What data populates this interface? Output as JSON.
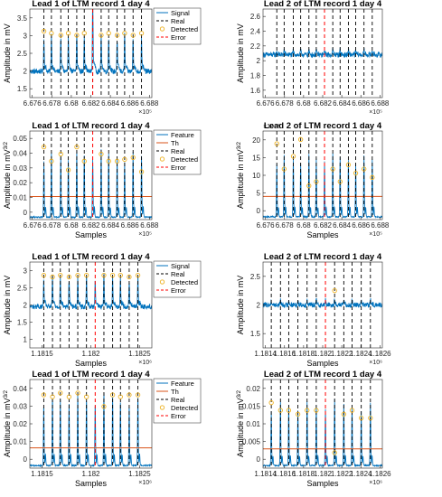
{
  "chart_data": [
    {
      "type": "line",
      "title": "Lead 1 of LTM record 1 day 4",
      "xlabel": "",
      "ylabel": "Amplitude in mV",
      "ylabel_sup": "",
      "x_ticks": [
        "6.676",
        "6.678",
        "6.68",
        "6.682",
        "6.684",
        "6.686",
        "6.688"
      ],
      "x_exponent": "×10⁵",
      "y_ticks": [
        "1.5",
        "2",
        "2.5",
        "3",
        "3.5"
      ],
      "y_exponent": "",
      "xlim": [
        6.675,
        6.688
      ],
      "ylim": [
        1.4,
        3.6
      ],
      "series": [
        {
          "name": "Signal",
          "base": 2.05,
          "peak": 3.0
        }
      ],
      "real_beats": [
        6.6765,
        6.6773,
        6.6783,
        6.6791,
        6.68,
        6.6808,
        6.6817,
        6.6826,
        6.6834,
        6.6843,
        6.6851,
        6.686,
        6.6869
      ],
      "detected": [
        {
          "x": 6.6765,
          "y": 3.05
        },
        {
          "x": 6.6773,
          "y": 3.0
        },
        {
          "x": 6.6783,
          "y": 2.95
        },
        {
          "x": 6.6791,
          "y": 3.0
        },
        {
          "x": 6.68,
          "y": 2.95
        },
        {
          "x": 6.6808,
          "y": 3.0
        },
        {
          "x": 6.6826,
          "y": 2.95
        },
        {
          "x": 6.6834,
          "y": 3.0
        },
        {
          "x": 6.6843,
          "y": 2.95
        },
        {
          "x": 6.6851,
          "y": 3.0
        },
        {
          "x": 6.686,
          "y": 2.95
        },
        {
          "x": 6.6869,
          "y": 3.0
        }
      ],
      "error": [
        6.6817
      ],
      "legend": [
        "Signal",
        "Real",
        "Detected",
        "Error"
      ],
      "legend_position": "right"
    },
    {
      "type": "line",
      "title": "Lead 2 of LTM record 1 day 4",
      "xlabel": "",
      "ylabel": "Amplitude in mV",
      "ylabel_sup": "",
      "x_ticks": [
        "6.676",
        "6.678",
        "6.68",
        "6.682",
        "6.684",
        "6.686",
        "6.688"
      ],
      "x_exponent": "×10⁵",
      "y_ticks": [
        "1.6",
        "1.8",
        "2",
        "2.2",
        "2.4",
        "2.6"
      ],
      "y_exponent": "",
      "xlim": [
        6.675,
        6.688
      ],
      "ylim": [
        1.5,
        2.7
      ],
      "series": [
        {
          "name": "Signal",
          "base": 2.08,
          "peak": 2.15
        }
      ],
      "real_beats": [
        6.6765,
        6.6773,
        6.6783,
        6.6791,
        6.68,
        6.6808,
        6.6826,
        6.6834,
        6.6843,
        6.6851,
        6.686,
        6.6869
      ],
      "detected": [],
      "error": [
        6.6817
      ],
      "legend": [],
      "legend_position": "none"
    },
    {
      "type": "line",
      "title": "Lead 1 of LTM record 1 day 4",
      "xlabel": "Samples",
      "ylabel": "Amplitude in mV",
      "ylabel_sup": "3/2",
      "x_ticks": [
        "6.676",
        "6.678",
        "6.68",
        "6.682",
        "6.684",
        "6.686",
        "6.688"
      ],
      "x_exponent": "×10⁵",
      "y_ticks": [
        "0",
        "0.01",
        "0.02",
        "0.03",
        "0.04",
        "0.05"
      ],
      "y_exponent": "",
      "xlim": [
        6.675,
        6.688
      ],
      "ylim": [
        0,
        0.05
      ],
      "series": [
        {
          "name": "Feature",
          "base": 0.001,
          "peak": 0.04
        },
        {
          "name": "Th",
          "value": 0.013
        }
      ],
      "real_beats": [
        6.6765,
        6.6773,
        6.6783,
        6.6791,
        6.68,
        6.6808,
        6.6826,
        6.6834,
        6.6843,
        6.6851,
        6.686,
        6.6869
      ],
      "detected": [
        {
          "x": 6.6765,
          "y": 0.041
        },
        {
          "x": 6.6773,
          "y": 0.033
        },
        {
          "x": 6.6783,
          "y": 0.037
        },
        {
          "x": 6.6791,
          "y": 0.028
        },
        {
          "x": 6.68,
          "y": 0.041
        },
        {
          "x": 6.6808,
          "y": 0.033
        },
        {
          "x": 6.6826,
          "y": 0.037
        },
        {
          "x": 6.6834,
          "y": 0.033
        },
        {
          "x": 6.6843,
          "y": 0.033
        },
        {
          "x": 6.6851,
          "y": 0.034
        },
        {
          "x": 6.686,
          "y": 0.035
        },
        {
          "x": 6.6869,
          "y": 0.027
        }
      ],
      "error": [
        6.6817
      ],
      "legend": [
        "Feature",
        "Th",
        "Real",
        "Detected",
        "Error"
      ],
      "legend_position": "right"
    },
    {
      "type": "line",
      "title": "Lead 2 of LTM record 1 day 4",
      "xlabel": "Samples",
      "ylabel": "Amplitude in mV",
      "ylabel_sup": "3/2",
      "x_ticks": [
        "6.676",
        "6.678",
        "6.68",
        "6.682",
        "6.684",
        "6.686",
        "6.688"
      ],
      "x_exponent": "×10⁵",
      "y_ticks": [
        "0",
        "5",
        "10",
        "15",
        "20"
      ],
      "y_exponent": "×10⁻³",
      "xlim": [
        6.675,
        6.688
      ],
      "ylim": [
        0,
        0.021
      ],
      "series": [
        {
          "name": "Feature",
          "base": 0.0005,
          "peak": 0.016
        },
        {
          "name": "Th",
          "value": 0.0055
        }
      ],
      "real_beats": [
        6.6765,
        6.6773,
        6.6783,
        6.6791,
        6.68,
        6.6808,
        6.6826,
        6.6834,
        6.6843,
        6.6851,
        6.686,
        6.6869
      ],
      "detected": [
        {
          "x": 6.6765,
          "y": 0.018
        },
        {
          "x": 6.6773,
          "y": 0.012
        },
        {
          "x": 6.6783,
          "y": 0.015
        },
        {
          "x": 6.6791,
          "y": 0.019
        },
        {
          "x": 6.68,
          "y": 0.008
        },
        {
          "x": 6.6808,
          "y": 0.009
        },
        {
          "x": 6.6826,
          "y": 0.012
        },
        {
          "x": 6.6834,
          "y": 0.009
        },
        {
          "x": 6.6843,
          "y": 0.013
        },
        {
          "x": 6.6851,
          "y": 0.011
        },
        {
          "x": 6.686,
          "y": 0.012
        },
        {
          "x": 6.6869,
          "y": 0.01
        }
      ],
      "error": [
        6.6817
      ],
      "legend": [],
      "legend_position": "none"
    },
    {
      "type": "line",
      "title": "Lead 1 of LTM record 1 day 4",
      "xlabel": "Samples",
      "ylabel": "Amplitude in mV",
      "ylabel_sup": "",
      "x_ticks": [
        "1.1815",
        "1.182",
        "1.1825"
      ],
      "x_exponent": "×10⁶",
      "y_ticks": [
        "1",
        "1.5",
        "2",
        "2.5",
        "3"
      ],
      "y_exponent": "",
      "xlim": [
        1.18125,
        1.18265
      ],
      "ylim": [
        0.8,
        3.4
      ],
      "series": [
        {
          "name": "Signal",
          "base": 2.05,
          "peak": 3.0
        }
      ],
      "real_beats": [
        1.18141,
        1.18151,
        1.1816,
        1.1817,
        1.1818,
        1.1819,
        1.1821,
        1.1822,
        1.18229,
        1.18239,
        1.18249
      ],
      "detected": [
        {
          "x": 1.18141,
          "y": 3.0
        },
        {
          "x": 1.18151,
          "y": 2.95
        },
        {
          "x": 1.1816,
          "y": 3.0
        },
        {
          "x": 1.1817,
          "y": 2.95
        },
        {
          "x": 1.1818,
          "y": 3.0
        },
        {
          "x": 1.1819,
          "y": 3.0
        },
        {
          "x": 1.1821,
          "y": 3.0
        },
        {
          "x": 1.1822,
          "y": 3.0
        },
        {
          "x": 1.18229,
          "y": 3.0
        },
        {
          "x": 1.18239,
          "y": 2.95
        },
        {
          "x": 1.18249,
          "y": 3.0
        }
      ],
      "error": [
        1.182
      ],
      "legend": [
        "Signal",
        "Real",
        "Detected",
        "Error"
      ],
      "legend_position": "right"
    },
    {
      "type": "line",
      "title": "Lead 2 of LTM record 1 day 4",
      "xlabel": "Samples",
      "ylabel": "Amplitude in mV",
      "ylabel_sup": "",
      "x_ticks": [
        "1.1814",
        "1.1816",
        "1.1818",
        "1.182",
        "1.1822",
        "1.1824",
        "1.1826"
      ],
      "x_exponent": "×10⁶",
      "y_ticks": [
        "1.5",
        "2",
        "2.5"
      ],
      "y_exponent": "",
      "xlim": [
        1.18132,
        1.18262
      ],
      "ylim": [
        1.3,
        2.8
      ],
      "series": [
        {
          "name": "Signal",
          "base": 2.05,
          "peak": 2.15
        }
      ],
      "real_beats": [
        1.18141,
        1.18151,
        1.1816,
        1.1817,
        1.1818,
        1.1819,
        1.1821,
        1.1822,
        1.18229,
        1.18239,
        1.18249
      ],
      "detected": [
        {
          "x": 1.1821,
          "y": 2.3
        }
      ],
      "error": [
        1.182
      ],
      "legend": [],
      "legend_position": "none"
    },
    {
      "type": "line",
      "title": "Lead 1 of LTM record 1 day 4",
      "xlabel": "Samples",
      "ylabel": "Amplitude in mV",
      "ylabel_sup": "3/2",
      "x_ticks": [
        "1.1815",
        "1.182",
        "1.1825"
      ],
      "x_exponent": "×10⁶",
      "y_ticks": [
        "0",
        "0.01",
        "0.02",
        "0.03",
        "0.04"
      ],
      "y_exponent": "",
      "xlim": [
        1.18125,
        1.18265
      ],
      "ylim": [
        0,
        0.046
      ],
      "series": [
        {
          "name": "Feature",
          "base": 0.001,
          "peak": 0.04
        },
        {
          "name": "Th",
          "value": 0.0105
        }
      ],
      "real_beats": [
        1.18141,
        1.18151,
        1.1816,
        1.1817,
        1.1818,
        1.1819,
        1.1821,
        1.1822,
        1.18229,
        1.18239,
        1.18249
      ],
      "detected": [
        {
          "x": 1.18141,
          "y": 0.038
        },
        {
          "x": 1.18151,
          "y": 0.037
        },
        {
          "x": 1.1816,
          "y": 0.039
        },
        {
          "x": 1.1817,
          "y": 0.037
        },
        {
          "x": 1.1818,
          "y": 0.039
        },
        {
          "x": 1.1819,
          "y": 0.037
        },
        {
          "x": 1.1821,
          "y": 0.032
        },
        {
          "x": 1.1822,
          "y": 0.038
        },
        {
          "x": 1.18229,
          "y": 0.037
        },
        {
          "x": 1.18239,
          "y": 0.038
        },
        {
          "x": 1.18249,
          "y": 0.038
        }
      ],
      "error": [
        1.182
      ],
      "legend": [
        "Feature",
        "Th",
        "Real",
        "Detected",
        "Error"
      ],
      "legend_position": "right"
    },
    {
      "type": "line",
      "title": "Lead 2 of LTM record 1 day 4",
      "xlabel": "Samples",
      "ylabel": "Amplitude in mV",
      "ylabel_sup": "3/2",
      "x_ticks": [
        "1.1814",
        "1.1816",
        "1.1818",
        "1.182",
        "1.1822",
        "1.1824",
        "1.1826"
      ],
      "x_exponent": "×10⁶",
      "y_ticks": [
        "0",
        "0.005",
        "0.01",
        "0.015",
        "0.02"
      ],
      "y_exponent": "",
      "xlim": [
        1.18132,
        1.18262
      ],
      "ylim": [
        0,
        0.023
      ],
      "series": [
        {
          "name": "Feature",
          "base": 0.0005,
          "peak": 0.018
        },
        {
          "name": "Th",
          "value": 0.005
        }
      ],
      "real_beats": [
        1.18141,
        1.18151,
        1.1816,
        1.1817,
        1.1818,
        1.1819,
        1.1821,
        1.1822,
        1.18229,
        1.18239,
        1.18249
      ],
      "detected": [
        {
          "x": 1.18141,
          "y": 0.017
        },
        {
          "x": 1.18151,
          "y": 0.015
        },
        {
          "x": 1.1816,
          "y": 0.015
        },
        {
          "x": 1.1817,
          "y": 0.014
        },
        {
          "x": 1.1818,
          "y": 0.015
        },
        {
          "x": 1.1819,
          "y": 0.015
        },
        {
          "x": 1.1821,
          "y": 0.004
        },
        {
          "x": 1.1822,
          "y": 0.014
        },
        {
          "x": 1.18229,
          "y": 0.015
        },
        {
          "x": 1.18239,
          "y": 0.013
        },
        {
          "x": 1.18249,
          "y": 0.013
        }
      ],
      "error": [
        1.182
      ],
      "legend": [],
      "legend_position": "none"
    }
  ],
  "colors": {
    "signal": "#0072bd",
    "threshold": "#d95319",
    "real": "#000000",
    "detected": "#edb120",
    "error": "#ff0000"
  }
}
